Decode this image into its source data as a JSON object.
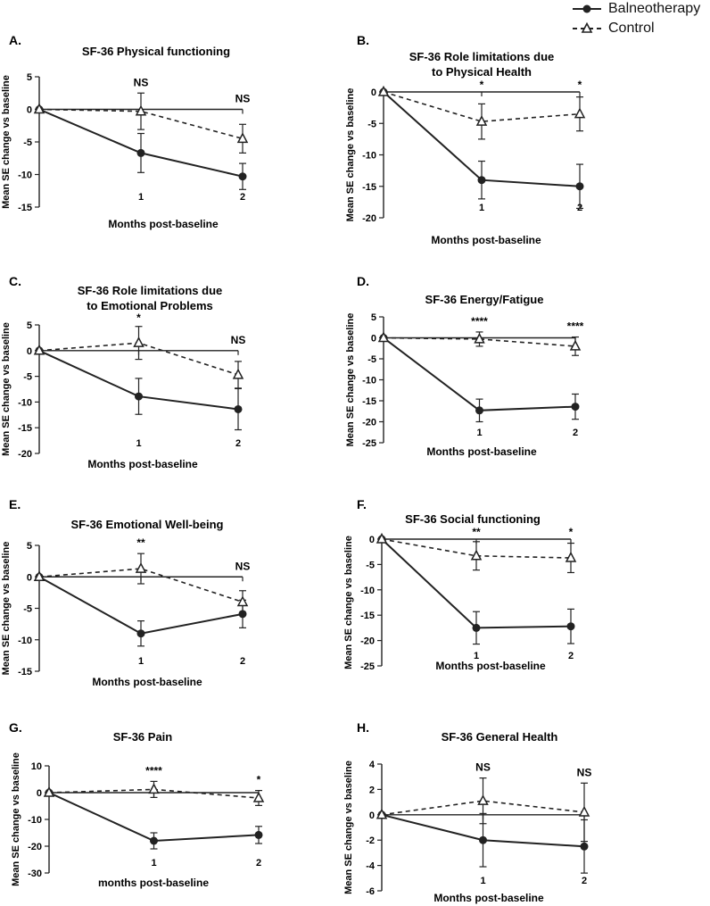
{
  "legend": {
    "balneo_label": "Balneotherapy",
    "control_label": "Control"
  },
  "chart_data": [
    {
      "letter": "A.",
      "type": "line",
      "title": [
        "SF-36 Physical functioning"
      ],
      "ylabel": "Mean SE change vs baseline",
      "xlabel": "Months post-baseline",
      "ylim": [
        -15,
        5
      ],
      "yticks": [
        5,
        0,
        -5,
        -10,
        -15
      ],
      "x": [
        0,
        1,
        2
      ],
      "xticklabels": [
        "",
        "1",
        "2"
      ],
      "significance": [
        "NS",
        "NS"
      ],
      "series": [
        {
          "name": "Balneotherapy",
          "values": [
            0,
            -6.7,
            -10.3
          ],
          "errors": [
            0,
            3.0,
            2.0
          ]
        },
        {
          "name": "Control",
          "values": [
            0,
            -0.3,
            -4.5
          ],
          "errors": [
            0,
            2.8,
            2.2
          ]
        }
      ]
    },
    {
      "letter": "B.",
      "type": "line",
      "title": [
        "SF-36 Role limitations due",
        "to Physical Health"
      ],
      "ylabel": "Mean SE change vs baseline",
      "xlabel": "Months post-baseline",
      "ylim": [
        -20,
        0
      ],
      "yticks": [
        0,
        -5,
        -10,
        -15,
        -20
      ],
      "x": [
        0,
        1,
        2
      ],
      "xticklabels": [
        "",
        "1",
        "2"
      ],
      "significance": [
        "*",
        "*"
      ],
      "series": [
        {
          "name": "Balneotherapy",
          "values": [
            0,
            -14.0,
            -15.0
          ],
          "errors": [
            0,
            3.0,
            3.5
          ]
        },
        {
          "name": "Control",
          "values": [
            0,
            -4.7,
            -3.5
          ],
          "errors": [
            0,
            2.8,
            2.7
          ]
        }
      ]
    },
    {
      "letter": "C.",
      "type": "line",
      "title": [
        "SF-36 Role limitations due",
        "to Emotional Problems"
      ],
      "ylabel": "Mean SE change vs baseline",
      "xlabel": "Months post-baseline",
      "ylim": [
        -20,
        5
      ],
      "yticks": [
        5,
        0,
        -5,
        -10,
        -15,
        -20
      ],
      "x": [
        0,
        1,
        2
      ],
      "xticklabels": [
        "",
        "1",
        "2"
      ],
      "significance": [
        "*",
        "NS"
      ],
      "series": [
        {
          "name": "Balneotherapy",
          "values": [
            0,
            -8.9,
            -11.4
          ],
          "errors": [
            0,
            3.5,
            4.0
          ]
        },
        {
          "name": "Control",
          "values": [
            0,
            1.5,
            -4.7
          ],
          "errors": [
            0,
            3.2,
            2.6
          ]
        }
      ]
    },
    {
      "letter": "D.",
      "type": "line",
      "title": [
        "SF-36 Energy/Fatigue"
      ],
      "ylabel": "Mean SE change vs baseline",
      "xlabel": "Months post-baseline",
      "ylim": [
        -25,
        5
      ],
      "yticks": [
        5,
        0,
        -5,
        -10,
        -15,
        -20,
        -25
      ],
      "x": [
        0,
        1,
        2
      ],
      "xticklabels": [
        "",
        "1",
        "2"
      ],
      "significance": [
        "****",
        "****"
      ],
      "series": [
        {
          "name": "Balneotherapy",
          "values": [
            0,
            -17.3,
            -16.4
          ],
          "errors": [
            0,
            2.7,
            3.0
          ]
        },
        {
          "name": "Control",
          "values": [
            0,
            -0.3,
            -2.0
          ],
          "errors": [
            0,
            1.7,
            2.2
          ]
        }
      ]
    },
    {
      "letter": "E.",
      "type": "line",
      "title": [
        "SF-36 Emotional Well-being"
      ],
      "ylabel": "Mean SE change vs baseline",
      "xlabel": "Months post-baseline",
      "ylim": [
        -15,
        5
      ],
      "yticks": [
        5,
        0,
        -5,
        -10,
        -15
      ],
      "x": [
        0,
        1,
        2
      ],
      "xticklabels": [
        "",
        "1",
        "2"
      ],
      "significance": [
        "**",
        "NS"
      ],
      "series": [
        {
          "name": "Balneotherapy",
          "values": [
            0,
            -9.0,
            -5.9
          ],
          "errors": [
            0,
            2.0,
            2.2
          ]
        },
        {
          "name": "Control",
          "values": [
            0,
            1.3,
            -4.0
          ],
          "errors": [
            0,
            2.4,
            1.8
          ]
        }
      ]
    },
    {
      "letter": "F.",
      "type": "line",
      "title": [
        "SF-36 Social functioning"
      ],
      "ylabel": "Mean SE change vs baseline",
      "xlabel": "Months post-baseline",
      "ylim": [
        -25,
        0
      ],
      "yticks": [
        0,
        -5,
        -10,
        -15,
        -20,
        -25
      ],
      "x": [
        0,
        1,
        2
      ],
      "xticklabels": [
        "",
        "1",
        "2"
      ],
      "significance": [
        "**",
        "*"
      ],
      "series": [
        {
          "name": "Balneotherapy",
          "values": [
            0,
            -17.5,
            -17.2
          ],
          "errors": [
            0,
            3.2,
            3.4
          ]
        },
        {
          "name": "Control",
          "values": [
            0,
            -3.3,
            -3.7
          ],
          "errors": [
            0,
            2.8,
            2.9
          ]
        }
      ]
    },
    {
      "letter": "G.",
      "type": "line",
      "title": [
        "SF-36 Pain"
      ],
      "ylabel": "Mean SE change vs baseline",
      "xlabel": "months post-baseline",
      "ylim": [
        -30,
        10
      ],
      "yticks": [
        10,
        0,
        -10,
        -20,
        -30
      ],
      "x": [
        0,
        1,
        2
      ],
      "xticklabels": [
        "",
        "1",
        "2"
      ],
      "significance": [
        "****",
        "*"
      ],
      "series": [
        {
          "name": "Balneotherapy",
          "values": [
            0,
            -18.0,
            -15.8
          ],
          "errors": [
            0,
            3.0,
            3.2
          ]
        },
        {
          "name": "Control",
          "values": [
            0,
            1.2,
            -2.0
          ],
          "errors": [
            0,
            3.0,
            2.8
          ]
        }
      ]
    },
    {
      "letter": "H.",
      "type": "line",
      "title": [
        "SF-36 General Health"
      ],
      "ylabel": "Mean SE change vs baseline",
      "xlabel": "Months post-baseline",
      "ylim": [
        -6,
        4
      ],
      "yticks": [
        4,
        2,
        0,
        -2,
        -4,
        -6
      ],
      "x": [
        0,
        1,
        2
      ],
      "xticklabels": [
        "",
        "1",
        "2"
      ],
      "significance": [
        "NS",
        "NS"
      ],
      "series": [
        {
          "name": "Balneotherapy",
          "values": [
            0,
            -2.0,
            -2.5
          ],
          "errors": [
            0,
            2.1,
            2.1
          ]
        },
        {
          "name": "Control",
          "values": [
            0,
            1.1,
            0.2
          ],
          "errors": [
            0,
            1.8,
            2.3
          ]
        }
      ]
    }
  ]
}
